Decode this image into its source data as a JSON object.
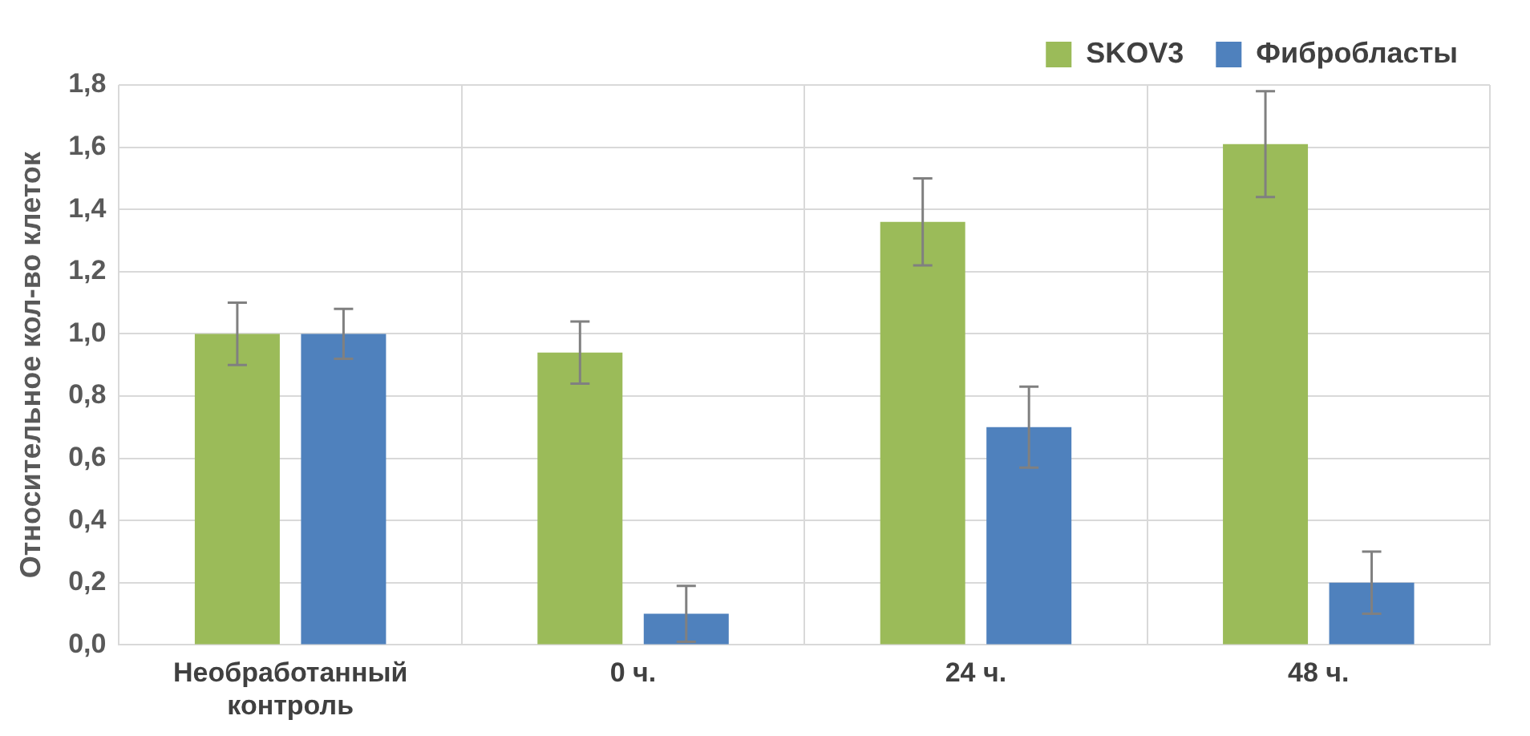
{
  "chart_data": {
    "type": "bar",
    "ylabel": "Относительное кол-во клеток",
    "categories": [
      "Необработанный контроль",
      "0 ч.",
      "24 ч.",
      "48 ч."
    ],
    "series": [
      {
        "name": "SKOV3",
        "color": "#9bbb59",
        "values": [
          1.0,
          0.94,
          1.36,
          1.61
        ],
        "errors": [
          0.1,
          0.1,
          0.14,
          0.17
        ]
      },
      {
        "name": "Фибробласты",
        "color": "#4f81bd",
        "values": [
          1.0,
          0.1,
          0.7,
          0.2
        ],
        "errors": [
          0.08,
          0.09,
          0.13,
          0.1
        ]
      }
    ],
    "ylim": [
      0,
      1.8
    ],
    "yticks": [
      {
        "value": 0,
        "label": "0,0"
      },
      {
        "value": 0.2,
        "label": "0,2"
      },
      {
        "value": 0.4,
        "label": "0,4"
      },
      {
        "value": 0.6,
        "label": "0,6"
      },
      {
        "value": 0.8,
        "label": "0,8"
      },
      {
        "value": 1,
        "label": "1,0"
      },
      {
        "value": 1.2,
        "label": "1,2"
      },
      {
        "value": 1.4,
        "label": "1,4"
      },
      {
        "value": 1.6,
        "label": "1,6"
      },
      {
        "value": 1.8,
        "label": "1,8"
      }
    ],
    "grid": true,
    "legend": "top right"
  }
}
